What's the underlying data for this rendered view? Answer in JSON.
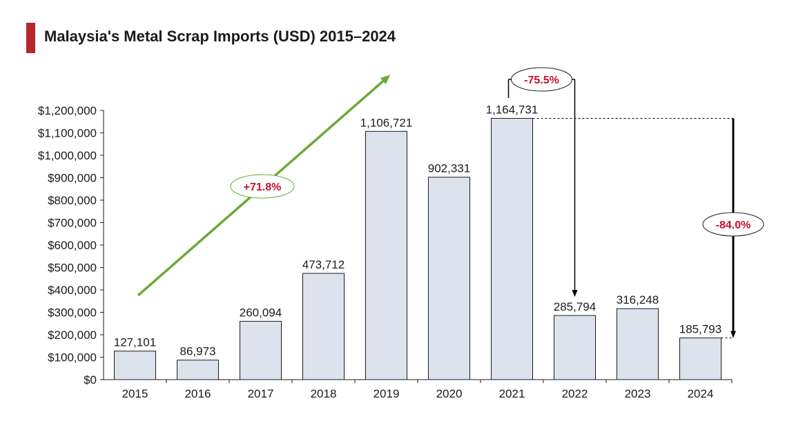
{
  "title": "Malaysia's Metal Scrap Imports (USD) 2015–2024",
  "colors": {
    "bar_fill": "#dde3ec",
    "bar_stroke": "#1a1a1a",
    "accent": "#b5262e",
    "arrow_green": "#6aaa3a",
    "annotation_red": "#c8102e"
  },
  "chart_data": {
    "type": "bar",
    "title": "Malaysia's Metal Scrap Imports (USD) 2015–2024",
    "categories": [
      "2015",
      "2016",
      "2017",
      "2018",
      "2019",
      "2020",
      "2021",
      "2022",
      "2023",
      "2024"
    ],
    "values": [
      127101,
      86973,
      260094,
      473712,
      1106721,
      902331,
      1164731,
      285794,
      316248,
      185793
    ],
    "data_labels": [
      "127,101",
      "86,973",
      "260,094",
      "473,712",
      "1,106,721",
      "902,331",
      "1,164,731",
      "285,794",
      "316,248",
      "185,793"
    ],
    "ylim": [
      0,
      1200000
    ],
    "y_ticks": [
      0,
      100000,
      200000,
      300000,
      400000,
      500000,
      600000,
      700000,
      800000,
      900000,
      1000000,
      1100000,
      1200000
    ],
    "y_tick_labels": [
      "$0",
      "$100,000",
      "$200,000",
      "$300,000",
      "$400,000",
      "$500,000",
      "$600,000",
      "$700,000",
      "$800,000",
      "$900,000",
      "$1,000,000",
      "$1,100,000",
      "$1,200,000"
    ],
    "xlabel": "",
    "ylabel": "",
    "grid": false,
    "annotations": [
      {
        "text": "+71.8%",
        "type": "trend-arrow"
      },
      {
        "text": "-75.5%",
        "type": "drop-arrow",
        "from": "2021",
        "to": "2022"
      },
      {
        "text": "-84.0%",
        "type": "drop-arrow",
        "from": "2021",
        "to": "2024"
      }
    ]
  }
}
